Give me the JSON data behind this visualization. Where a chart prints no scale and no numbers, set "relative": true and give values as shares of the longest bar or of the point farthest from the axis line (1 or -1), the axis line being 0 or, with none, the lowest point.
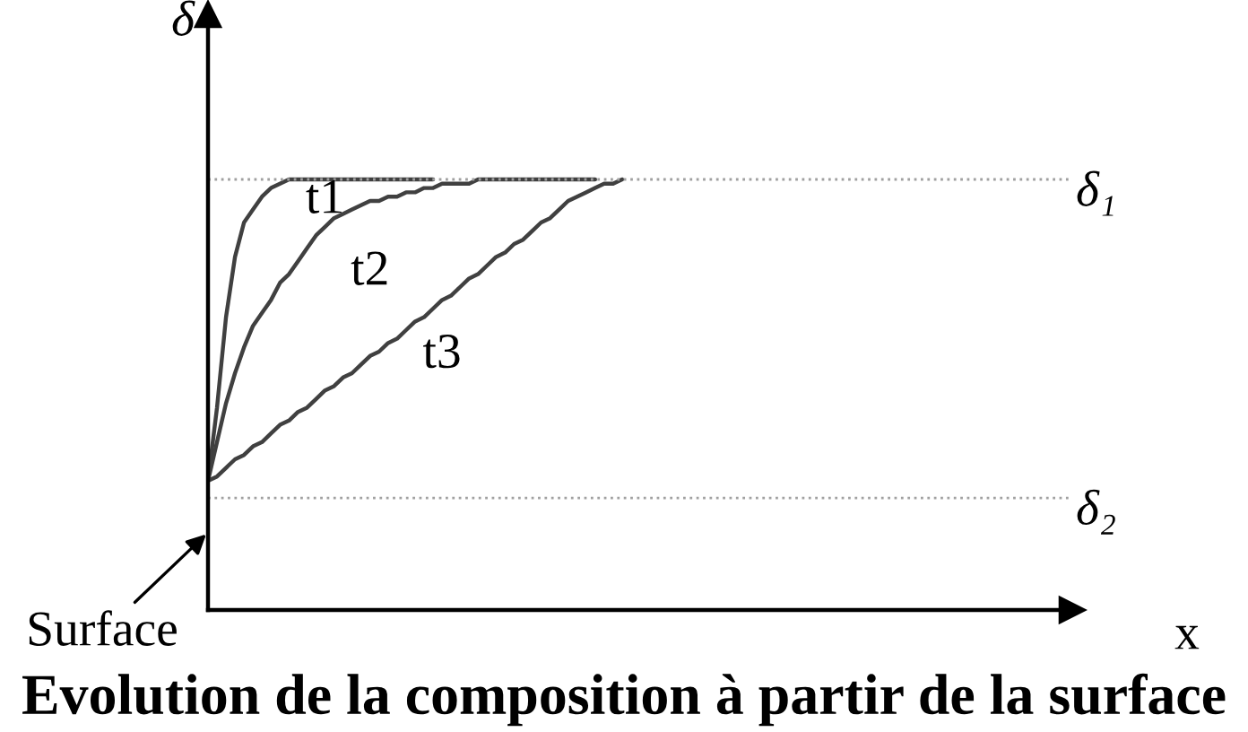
{
  "chart_data": {
    "type": "line",
    "relative": true,
    "title": "Evolution de la composition à partir de la surface",
    "xlabel": "x",
    "ylabel": "δ",
    "line_style": "solid",
    "categories": [
      null,
      null,
      null,
      null,
      null,
      null,
      null,
      null,
      null,
      null,
      null,
      null,
      null,
      null,
      null,
      null,
      null,
      null,
      null,
      null,
      null,
      null,
      null,
      null,
      null,
      null,
      null,
      null,
      null,
      null,
      null,
      null,
      null,
      null,
      null,
      null,
      null,
      null,
      null,
      null,
      null,
      null,
      null,
      null,
      null,
      null,
      null,
      null,
      null,
      null,
      null,
      null,
      null,
      null,
      null,
      null,
      null,
      null,
      null,
      null,
      null,
      null,
      null,
      null,
      null,
      null,
      null,
      null,
      null,
      null,
      null,
      null,
      null,
      null,
      null,
      null,
      null,
      null,
      null,
      null,
      null,
      null,
      null,
      null,
      null,
      null,
      null,
      null,
      null,
      null,
      null,
      null,
      null,
      null,
      null,
      null,
      null
    ],
    "series": [
      {
        "name": "t1",
        "color": "#404040",
        "values": [
          0.3,
          0.47,
          0.68,
          0.82,
          0.9,
          0.93,
          0.96,
          0.98,
          0.99,
          1.0,
          1.0,
          1.0,
          1.0,
          1.0,
          1.0,
          1.0,
          1.0,
          1.0,
          1.0,
          1.0,
          1.0,
          1.0,
          1.0,
          1.0,
          1.0,
          1.0,
          null,
          null,
          null,
          null,
          null,
          null,
          null,
          null,
          null,
          null,
          null,
          null,
          null,
          null,
          null,
          null,
          null,
          null,
          null,
          null,
          null,
          null,
          null,
          null,
          null,
          null,
          null,
          null,
          null,
          null,
          null,
          null,
          null,
          null,
          null,
          null,
          null,
          null,
          null,
          null,
          null,
          null,
          null,
          null,
          null,
          null,
          null,
          null,
          null,
          null,
          null,
          null,
          null,
          null,
          null,
          null,
          null,
          null,
          null,
          null,
          null,
          null,
          null,
          null,
          null,
          null,
          null,
          null,
          null,
          null,
          null
        ]
      },
      {
        "name": "t2",
        "color": "#404040",
        "values": [
          0.3,
          0.39,
          0.48,
          0.55,
          0.61,
          0.66,
          0.69,
          0.72,
          0.76,
          0.78,
          0.81,
          0.84,
          0.87,
          0.89,
          0.91,
          0.92,
          0.93,
          0.94,
          0.95,
          0.95,
          0.96,
          0.96,
          0.97,
          0.97,
          0.98,
          0.98,
          0.99,
          0.99,
          0.99,
          0.99,
          1.0,
          1.0,
          1.0,
          1.0,
          1.0,
          1.0,
          1.0,
          1.0,
          1.0,
          1.0,
          1.0,
          1.0,
          1.0,
          1.0,
          null,
          null,
          null,
          null,
          null,
          null,
          null,
          null,
          null,
          null,
          null,
          null,
          null,
          null,
          null,
          null,
          null,
          null,
          null,
          null,
          null,
          null,
          null,
          null,
          null,
          null,
          null,
          null,
          null,
          null,
          null,
          null,
          null,
          null,
          null,
          null,
          null,
          null,
          null,
          null,
          null,
          null,
          null,
          null,
          null,
          null,
          null,
          null,
          null,
          null,
          null,
          null,
          null
        ]
      },
      {
        "name": "t3",
        "color": "#404040",
        "values": [
          0.3,
          0.31,
          0.33,
          0.35,
          0.36,
          0.38,
          0.39,
          0.41,
          0.43,
          0.44,
          0.46,
          0.47,
          0.49,
          0.51,
          0.52,
          0.54,
          0.55,
          0.57,
          0.59,
          0.6,
          0.62,
          0.63,
          0.65,
          0.67,
          0.68,
          0.7,
          0.72,
          0.73,
          0.75,
          0.77,
          0.78,
          0.8,
          0.82,
          0.83,
          0.85,
          0.86,
          0.88,
          0.9,
          0.91,
          0.93,
          0.95,
          0.96,
          0.97,
          0.98,
          0.99,
          0.99,
          1.0,
          null,
          null,
          null,
          null,
          null,
          null,
          null,
          null,
          null,
          null,
          null,
          null,
          null,
          null,
          null,
          null,
          null,
          null,
          null,
          null,
          null,
          null,
          null,
          null,
          null,
          null,
          null,
          null,
          null,
          null,
          null,
          null,
          null,
          null,
          null,
          null,
          null,
          null,
          null,
          null,
          null,
          null,
          null,
          null,
          null,
          null,
          null,
          null,
          null,
          null
        ]
      }
    ],
    "ref_lines": [
      {
        "axis": "y",
        "value": 1.0,
        "label": "δ₁",
        "color": "#a0a0a0",
        "line_style": "dotted"
      },
      {
        "axis": "y",
        "value": 0.26,
        "label": "δ₂",
        "color": "#a0a0a0",
        "line_style": "dotted"
      }
    ],
    "annotations": [
      "Surface"
    ]
  }
}
